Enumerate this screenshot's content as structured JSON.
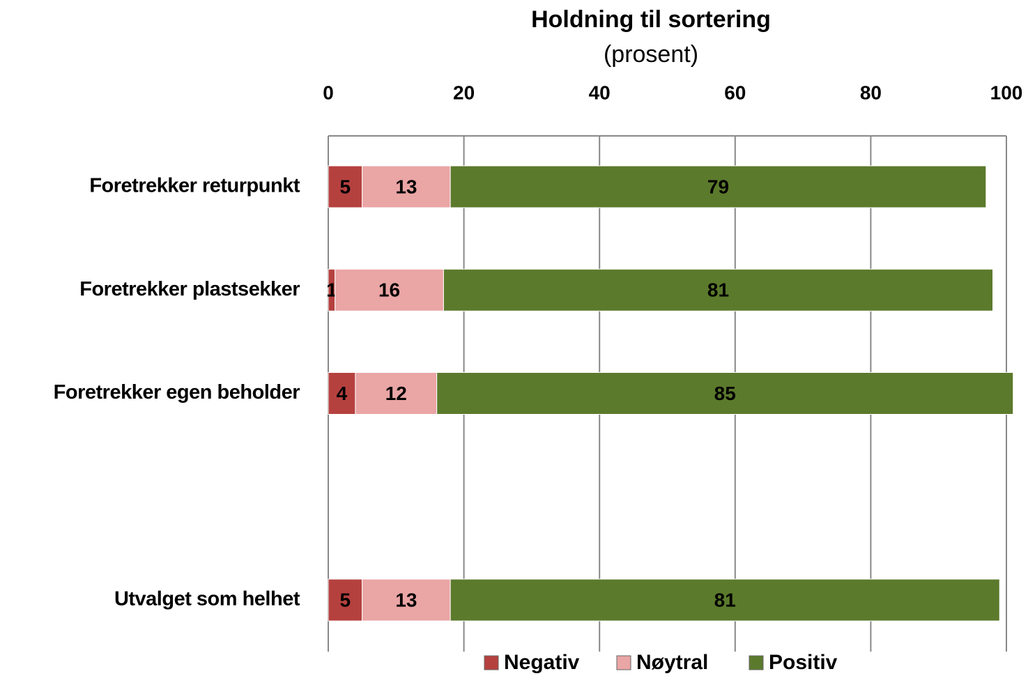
{
  "chart_data": {
    "type": "stacked_bar_horizontal",
    "title": "Holdning til sortering",
    "subtitle": "(prosent)",
    "categories": [
      "Foretrekker returpunkt",
      "Foretrekker plastsekker",
      "Foretrekker egen beholder",
      null,
      "Utvalget som helhet"
    ],
    "series": [
      {
        "name": "Negativ",
        "color": "#b5413f",
        "values": [
          5,
          1,
          4,
          null,
          5
        ]
      },
      {
        "name": "Nøytral",
        "color": "#eaa5a5",
        "values": [
          13,
          16,
          12,
          null,
          13
        ]
      },
      {
        "name": "Positiv",
        "color": "#5c7a2c",
        "values": [
          79,
          81,
          85,
          null,
          81
        ]
      }
    ],
    "xlim": [
      0,
      100
    ],
    "xticks": [
      0,
      20,
      40,
      60,
      80,
      100
    ],
    "grid": true,
    "legend": "bottom"
  }
}
